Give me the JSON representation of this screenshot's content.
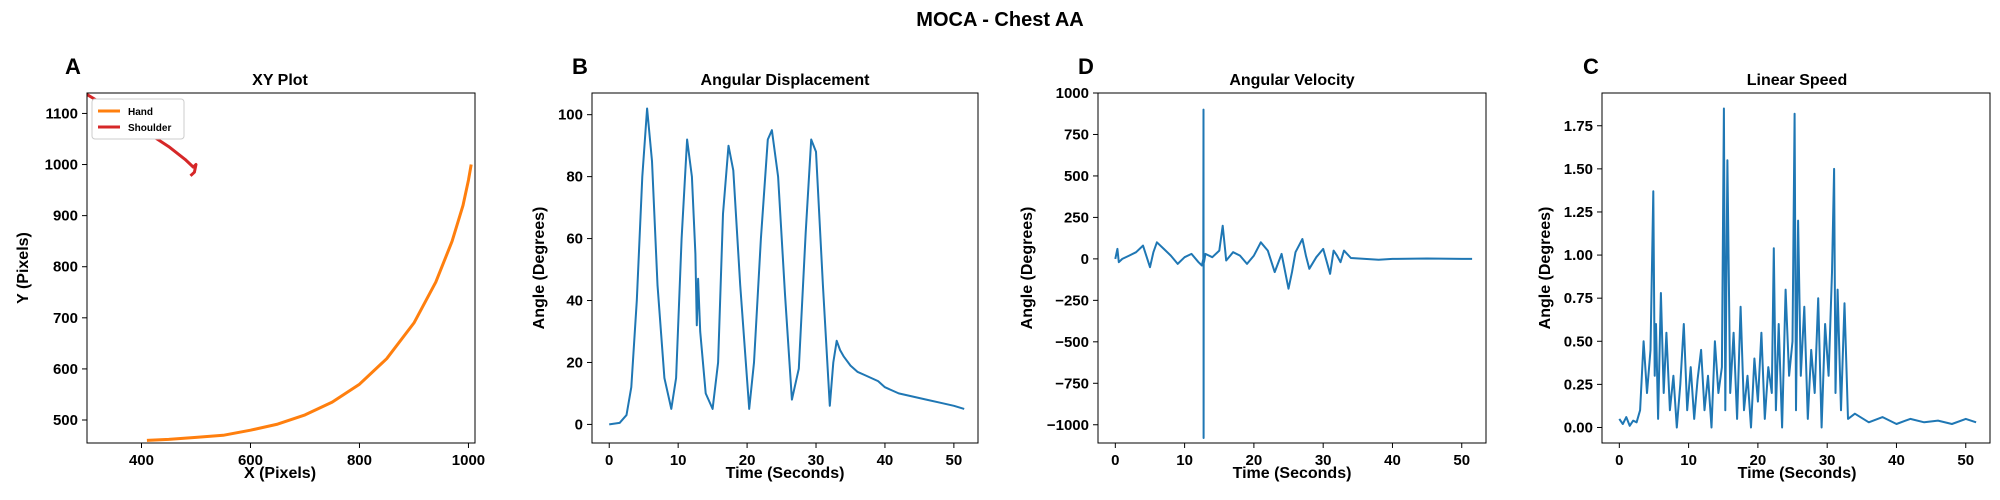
{
  "figure": {
    "title": "MOCA - Chest AA"
  },
  "colors": {
    "blue": "#1f77b4",
    "orange": "#ff7f0e",
    "red": "#d62728"
  },
  "chart_data": [
    {
      "type": "line",
      "panel_label": "A",
      "title": "XY Plot",
      "xlabel": "X (Pixels)",
      "ylabel": "Y (Pixels)",
      "xlim": [
        300,
        1012
      ],
      "ylim": [
        455,
        1140
      ],
      "xticks": [
        400,
        600,
        800,
        1000
      ],
      "yticks": [
        500,
        600,
        700,
        800,
        900,
        1000,
        1100
      ],
      "legend": {
        "position": "top-left"
      },
      "series": [
        {
          "name": "Hand",
          "color": "orange",
          "x": [
            410,
            450,
            500,
            550,
            600,
            650,
            700,
            750,
            800,
            850,
            900,
            940,
            970,
            990,
            1000,
            1005
          ],
          "y": [
            460,
            462,
            466,
            470,
            480,
            492,
            510,
            535,
            570,
            620,
            690,
            770,
            850,
            920,
            970,
            1000
          ]
        },
        {
          "name": "Shoulder",
          "color": "red",
          "x": [
            300,
            350,
            400,
            450,
            480,
            495,
            500,
            497,
            490
          ],
          "y": [
            1137,
            1105,
            1070,
            1035,
            1010,
            995,
            1000,
            985,
            978
          ]
        }
      ]
    },
    {
      "type": "line",
      "panel_label": "B",
      "title": "Angular Displacement",
      "xlabel": "Time (Seconds)",
      "ylabel": "Angle (Degrees)",
      "xlim": [
        -2.5,
        53.5
      ],
      "ylim": [
        -6,
        107
      ],
      "xticks": [
        0,
        10,
        20,
        30,
        40,
        50
      ],
      "yticks": [
        0,
        20,
        40,
        60,
        80,
        100
      ],
      "series": [
        {
          "color": "blue",
          "x": [
            0,
            1.5,
            2.5,
            3.2,
            4,
            4.8,
            5.5,
            6.2,
            7,
            8,
            9,
            9.7,
            10.5,
            11.3,
            12,
            12.5,
            12.7,
            12.9,
            13.2,
            14,
            15,
            15.8,
            16.5,
            17.3,
            18,
            19,
            20.3,
            21,
            22,
            23,
            23.6,
            24.5,
            25.5,
            26.5,
            27.5,
            28.5,
            29.3,
            30,
            31,
            32,
            32.5,
            33,
            33.5,
            34,
            35,
            36,
            37,
            38,
            39,
            40,
            42,
            44,
            46,
            48,
            50,
            51.5
          ],
          "y": [
            0,
            0.5,
            3,
            12,
            40,
            80,
            102,
            85,
            45,
            15,
            5,
            15,
            60,
            92,
            80,
            55,
            32,
            47,
            30,
            10,
            5,
            20,
            68,
            90,
            82,
            45,
            5,
            20,
            60,
            92,
            95,
            80,
            42,
            8,
            18,
            62,
            92,
            88,
            45,
            6,
            20,
            27,
            24,
            22,
            19,
            17,
            16,
            15,
            14,
            12,
            10,
            9,
            8,
            7,
            6,
            5
          ]
        }
      ]
    },
    {
      "type": "line",
      "panel_label": "D",
      "title": "Angular Velocity",
      "xlabel": "Time (Seconds)",
      "ylabel": "Angle (Degrees)",
      "xlim": [
        -2.5,
        53.5
      ],
      "ylim": [
        -1110,
        1000
      ],
      "xticks": [
        0,
        10,
        20,
        30,
        40,
        50
      ],
      "yticks": [
        1000,
        750,
        500,
        250,
        0,
        -250,
        -500,
        -750,
        -1000
      ],
      "series": [
        {
          "color": "blue",
          "x": [
            0,
            0.3,
            0.5,
            1,
            2,
            3,
            4,
            5,
            5.5,
            6,
            7,
            8,
            9,
            10,
            11,
            12,
            12.5,
            12.7,
            12.72,
            12.74,
            12.76,
            12.8,
            13,
            14,
            15,
            15.5,
            16,
            17,
            18,
            19,
            20,
            21,
            22,
            23,
            24,
            25,
            25.5,
            26,
            27,
            27.5,
            28,
            29,
            30,
            31,
            31.5,
            32,
            32.5,
            33,
            34,
            36,
            38,
            40,
            45,
            50,
            51.5
          ],
          "y": [
            0,
            60,
            -20,
            0,
            20,
            40,
            80,
            -50,
            40,
            100,
            60,
            20,
            -30,
            10,
            30,
            -20,
            -40,
            0,
            900,
            -1080,
            0,
            -20,
            30,
            10,
            50,
            200,
            -10,
            40,
            20,
            -30,
            20,
            100,
            50,
            -80,
            30,
            -180,
            -80,
            40,
            120,
            20,
            -60,
            10,
            60,
            -90,
            50,
            20,
            -20,
            50,
            5,
            0,
            -5,
            0,
            2,
            0,
            0
          ]
        }
      ]
    },
    {
      "type": "line",
      "panel_label": "C",
      "title": "Linear Speed",
      "xlabel": "Time (Seconds)",
      "ylabel": "Angle (Degrees)",
      "xlim": [
        -2.5,
        53.5
      ],
      "ylim": [
        -0.09,
        1.94
      ],
      "xticks": [
        0,
        10,
        20,
        30,
        40,
        50
      ],
      "yticks": [
        0.0,
        0.25,
        0.5,
        0.75,
        1.0,
        1.25,
        1.5,
        1.75
      ],
      "series": [
        {
          "color": "blue",
          "x": [
            0,
            0.5,
            1,
            1.5,
            2,
            2.5,
            3,
            3.5,
            4,
            4.5,
            4.9,
            5.1,
            5.3,
            5.6,
            6,
            6.4,
            6.8,
            7.3,
            7.8,
            8.3,
            8.8,
            9.3,
            9.8,
            10.3,
            10.8,
            11.3,
            11.8,
            12.3,
            12.8,
            13.3,
            13.8,
            14.3,
            14.8,
            15.1,
            15.3,
            15.6,
            16,
            16.5,
            17,
            17.5,
            18,
            18.5,
            19,
            19.5,
            20,
            20.5,
            21,
            21.5,
            22,
            22.3,
            22.6,
            23,
            23.5,
            24,
            24.5,
            25,
            25.3,
            25.5,
            25.8,
            26.2,
            26.7,
            27.2,
            27.7,
            28.2,
            28.7,
            29.2,
            29.7,
            30.2,
            30.7,
            31,
            31.2,
            31.5,
            32,
            32.5,
            33,
            34,
            36,
            38,
            40,
            42,
            44,
            46,
            48,
            50,
            51.5
          ],
          "y": [
            0.05,
            0.02,
            0.06,
            0.01,
            0.04,
            0.03,
            0.1,
            0.5,
            0.2,
            0.45,
            1.37,
            0.3,
            0.6,
            0.05,
            0.78,
            0.2,
            0.55,
            0.1,
            0.3,
            0.0,
            0.25,
            0.6,
            0.1,
            0.35,
            0.05,
            0.28,
            0.45,
            0.1,
            0.3,
            0.0,
            0.5,
            0.2,
            0.35,
            1.85,
            0.1,
            1.55,
            0.2,
            0.55,
            0.05,
            0.7,
            0.1,
            0.3,
            0.0,
            0.4,
            0.15,
            0.55,
            0.05,
            0.35,
            0.2,
            1.04,
            0.1,
            0.6,
            0.0,
            0.8,
            0.3,
            0.5,
            1.82,
            0.1,
            1.2,
            0.3,
            0.7,
            0.05,
            0.45,
            0.2,
            0.75,
            0.0,
            0.6,
            0.3,
            0.9,
            1.5,
            0.2,
            0.8,
            0.1,
            0.72,
            0.05,
            0.08,
            0.03,
            0.06,
            0.02,
            0.05,
            0.03,
            0.04,
            0.02,
            0.05,
            0.03
          ]
        }
      ]
    }
  ]
}
